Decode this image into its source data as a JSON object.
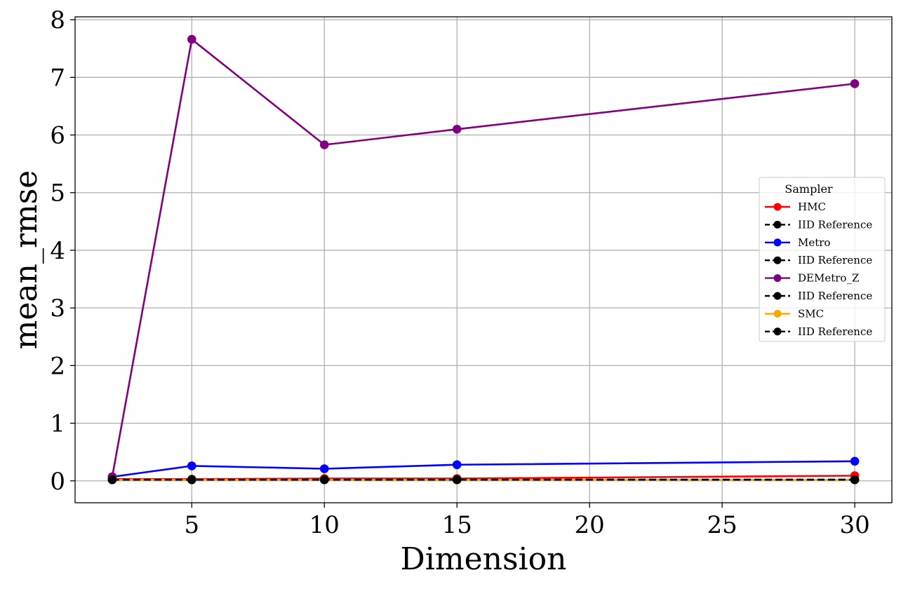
{
  "chart_data": {
    "type": "line",
    "title": "",
    "xlabel": "Dimension",
    "ylabel": "mean_rmse",
    "xlim": [
      0.6,
      31.4
    ],
    "ylim": [
      -0.38,
      8.05
    ],
    "xticks": [
      5,
      10,
      15,
      20,
      25,
      30
    ],
    "yticks": [
      0,
      1,
      2,
      3,
      4,
      5,
      6,
      7,
      8
    ],
    "grid": true,
    "legend": {
      "title": "Sampler",
      "placement": "center-right"
    },
    "x": [
      2,
      5,
      10,
      15,
      30
    ],
    "series": [
      {
        "name": "HMC",
        "values": [
          0.03,
          0.03,
          0.04,
          0.04,
          0.09
        ],
        "color": "#ff0000",
        "linestyle": "solid",
        "marker": "circle"
      },
      {
        "name": "IID Reference",
        "values": [
          0.02,
          0.02,
          0.02,
          0.02,
          0.02
        ],
        "color": "#000000",
        "linestyle": "dashed",
        "marker": "circle"
      },
      {
        "name": "Metro",
        "values": [
          0.07,
          0.26,
          0.21,
          0.28,
          0.34
        ],
        "color": "#0000ff",
        "linestyle": "solid",
        "marker": "circle"
      },
      {
        "name": "IID Reference",
        "values": [
          0.02,
          0.02,
          0.02,
          0.02,
          0.02
        ],
        "color": "#000000",
        "linestyle": "dashed",
        "marker": "circle"
      },
      {
        "name": "DEMetro_Z",
        "values": [
          0.07,
          7.66,
          5.83,
          6.1,
          6.89
        ],
        "color": "#800080",
        "linestyle": "solid",
        "marker": "circle"
      },
      {
        "name": "IID Reference",
        "values": [
          0.02,
          0.02,
          0.02,
          0.02,
          0.02
        ],
        "color": "#000000",
        "linestyle": "dashed",
        "marker": "circle"
      },
      {
        "name": "SMC",
        "values": [
          0.02,
          0.02,
          0.02,
          0.02,
          0.02
        ],
        "color": "#ffa500",
        "linestyle": "solid",
        "marker": "circle"
      },
      {
        "name": "IID Reference",
        "values": [
          0.02,
          0.02,
          0.02,
          0.02,
          0.02
        ],
        "color": "#000000",
        "linestyle": "dashed",
        "marker": "circle"
      }
    ]
  }
}
